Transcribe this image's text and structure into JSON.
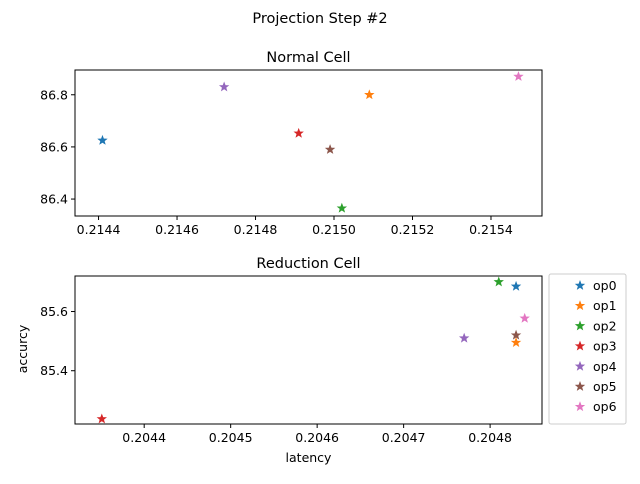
{
  "chart_data": {
    "suptitle": "Projection Step #2",
    "legend": {
      "entries": [
        "op0",
        "op1",
        "op2",
        "op3",
        "op4",
        "op5",
        "op6"
      ],
      "placement": "right of bottom panel"
    },
    "colors": [
      "#1f77b4",
      "#ff7f0e",
      "#2ca02c",
      "#d62728",
      "#9467bd",
      "#8c564b",
      "#e377c2"
    ],
    "marker": "star",
    "charts": [
      {
        "type": "scatter",
        "title": "Normal Cell",
        "xlabel": "",
        "ylabel": "",
        "xlim": [
          0.21434,
          0.21553
        ],
        "ylim": [
          86.335,
          86.895
        ],
        "xticks": [
          0.2144,
          0.2146,
          0.2148,
          0.215,
          0.2152,
          0.2154
        ],
        "xtick_labels": [
          "0.2144",
          "0.2146",
          "0.2148",
          "0.2150",
          "0.2152",
          "0.2154"
        ],
        "yticks": [
          86.4,
          86.6,
          86.8
        ],
        "ytick_labels": [
          "86.4",
          "86.6",
          "86.8"
        ],
        "grid": false,
        "points": [
          {
            "series": "op0",
            "x": 0.21441,
            "y": 86.625
          },
          {
            "series": "op1",
            "x": 0.21509,
            "y": 86.8
          },
          {
            "series": "op2",
            "x": 0.21502,
            "y": 86.365
          },
          {
            "series": "op3",
            "x": 0.21491,
            "y": 86.652
          },
          {
            "series": "op4",
            "x": 0.21472,
            "y": 86.83
          },
          {
            "series": "op5",
            "x": 0.21499,
            "y": 86.59
          },
          {
            "series": "op6",
            "x": 0.21547,
            "y": 86.87
          }
        ]
      },
      {
        "type": "scatter",
        "title": "Reduction Cell",
        "xlabel": "latency",
        "ylabel": "accurcy",
        "xlim": [
          0.20432,
          0.20486
        ],
        "ylim": [
          85.22,
          85.72
        ],
        "xticks": [
          0.2044,
          0.2045,
          0.2046,
          0.2047,
          0.2048
        ],
        "xtick_labels": [
          "0.2044",
          "0.2045",
          "0.2046",
          "0.2047",
          "0.2048"
        ],
        "yticks": [
          85.4,
          85.6
        ],
        "ytick_labels": [
          "85.4",
          "85.6"
        ],
        "grid": false,
        "points": [
          {
            "series": "op0",
            "x": 0.20483,
            "y": 85.685
          },
          {
            "series": "op1",
            "x": 0.20483,
            "y": 85.495
          },
          {
            "series": "op2",
            "x": 0.20481,
            "y": 85.7
          },
          {
            "series": "op3",
            "x": 0.204351,
            "y": 85.237
          },
          {
            "series": "op4",
            "x": 0.20477,
            "y": 85.51
          },
          {
            "series": "op5",
            "x": 0.20483,
            "y": 85.52
          },
          {
            "series": "op6",
            "x": 0.20484,
            "y": 85.577
          }
        ]
      }
    ]
  }
}
